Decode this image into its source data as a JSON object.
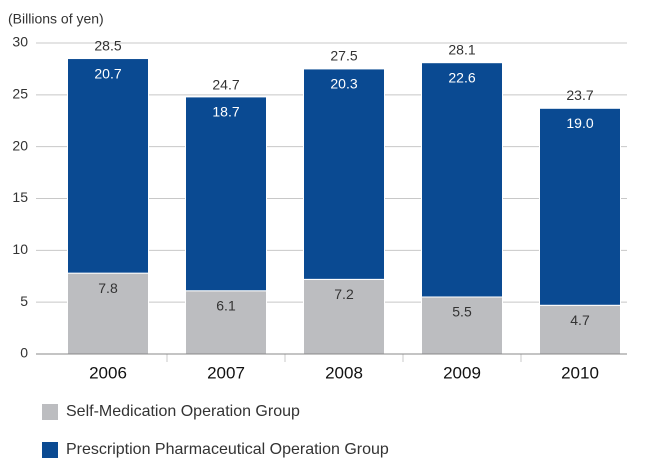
{
  "chart_data": {
    "type": "stacked_bar",
    "y_axis_label": "(Billions of yen)",
    "categories": [
      "2006",
      "2007",
      "2008",
      "2009",
      "2010"
    ],
    "series": [
      {
        "name": "Self-Medication Operation Group",
        "color": "#bcbdc0",
        "values": [
          7.8,
          6.1,
          7.2,
          5.5,
          4.7
        ]
      },
      {
        "name": "Prescription Pharmaceutical Operation Group",
        "color": "#0a4a92",
        "values": [
          20.7,
          18.7,
          20.3,
          22.6,
          19.0
        ],
        "value_labels": [
          "20.7",
          "18.7",
          "20.3",
          "22.6",
          "19.0"
        ]
      }
    ],
    "totals": [
      28.5,
      24.7,
      27.5,
      28.1,
      23.7
    ],
    "ylim": [
      0,
      30
    ],
    "yticks": [
      0,
      5,
      10,
      15,
      20,
      25,
      30
    ],
    "grid": true
  }
}
